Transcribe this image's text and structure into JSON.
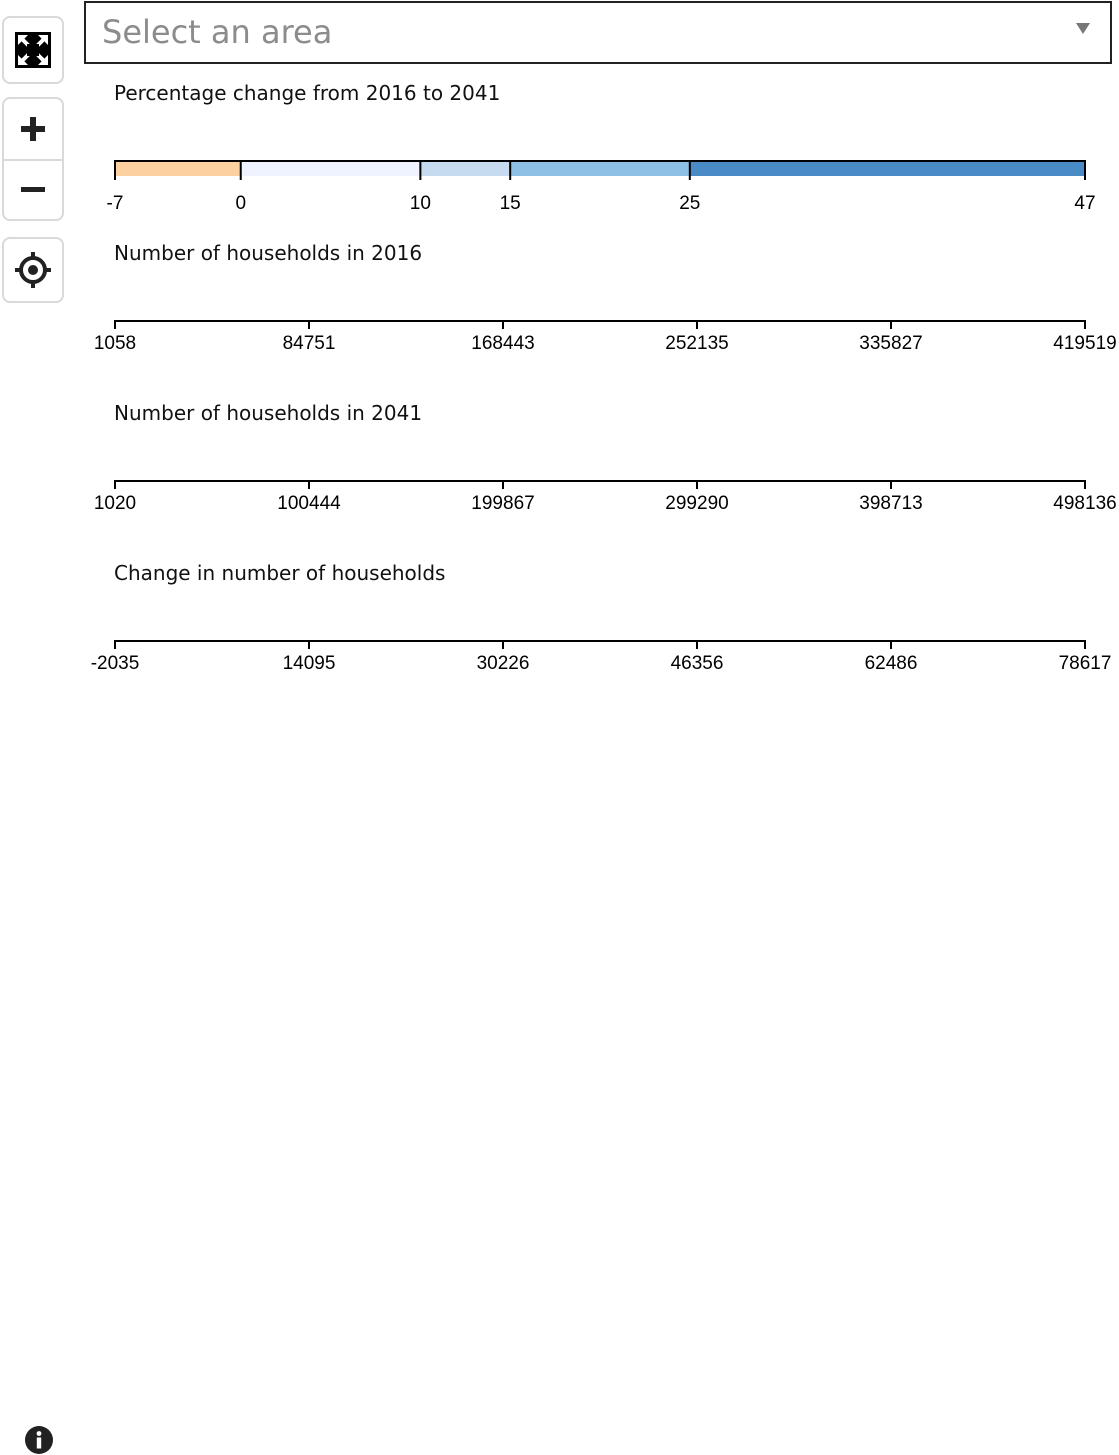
{
  "controls": {
    "fullscreen_icon": "expand-arrows-icon",
    "zoom_in_icon": "plus-icon",
    "zoom_out_icon": "minus-icon",
    "locate_icon": "crosshair-icon",
    "info_icon": "info-icon"
  },
  "area_select": {
    "placeholder": "Select an area"
  },
  "legends": [
    {
      "title": "Percentage change from 2016 to 2041",
      "type": "color-scale",
      "ticks": [
        "-7",
        "0",
        "10",
        "15",
        "25",
        "47"
      ],
      "bands": [
        {
          "from": -7,
          "to": 0,
          "color": "#fdd0a2"
        },
        {
          "from": 0,
          "to": 10,
          "color": "#eff3ff"
        },
        {
          "from": 10,
          "to": 15,
          "color": "#c6dbef"
        },
        {
          "from": 15,
          "to": 25,
          "color": "#8dc0e4"
        },
        {
          "from": 25,
          "to": 47,
          "color": "#4a8bc6"
        }
      ]
    },
    {
      "title": "Number of households in 2016",
      "type": "axis",
      "ticks": [
        "1058",
        "84751",
        "168443",
        "252135",
        "335827",
        "419519"
      ]
    },
    {
      "title": "Number of households in 2041",
      "type": "axis",
      "ticks": [
        "1020",
        "100444",
        "199867",
        "299290",
        "398713",
        "498136"
      ]
    },
    {
      "title": "Change in number of households",
      "type": "axis",
      "ticks": [
        "-2035",
        "14095",
        "30226",
        "46356",
        "62486",
        "78617"
      ]
    }
  ]
}
